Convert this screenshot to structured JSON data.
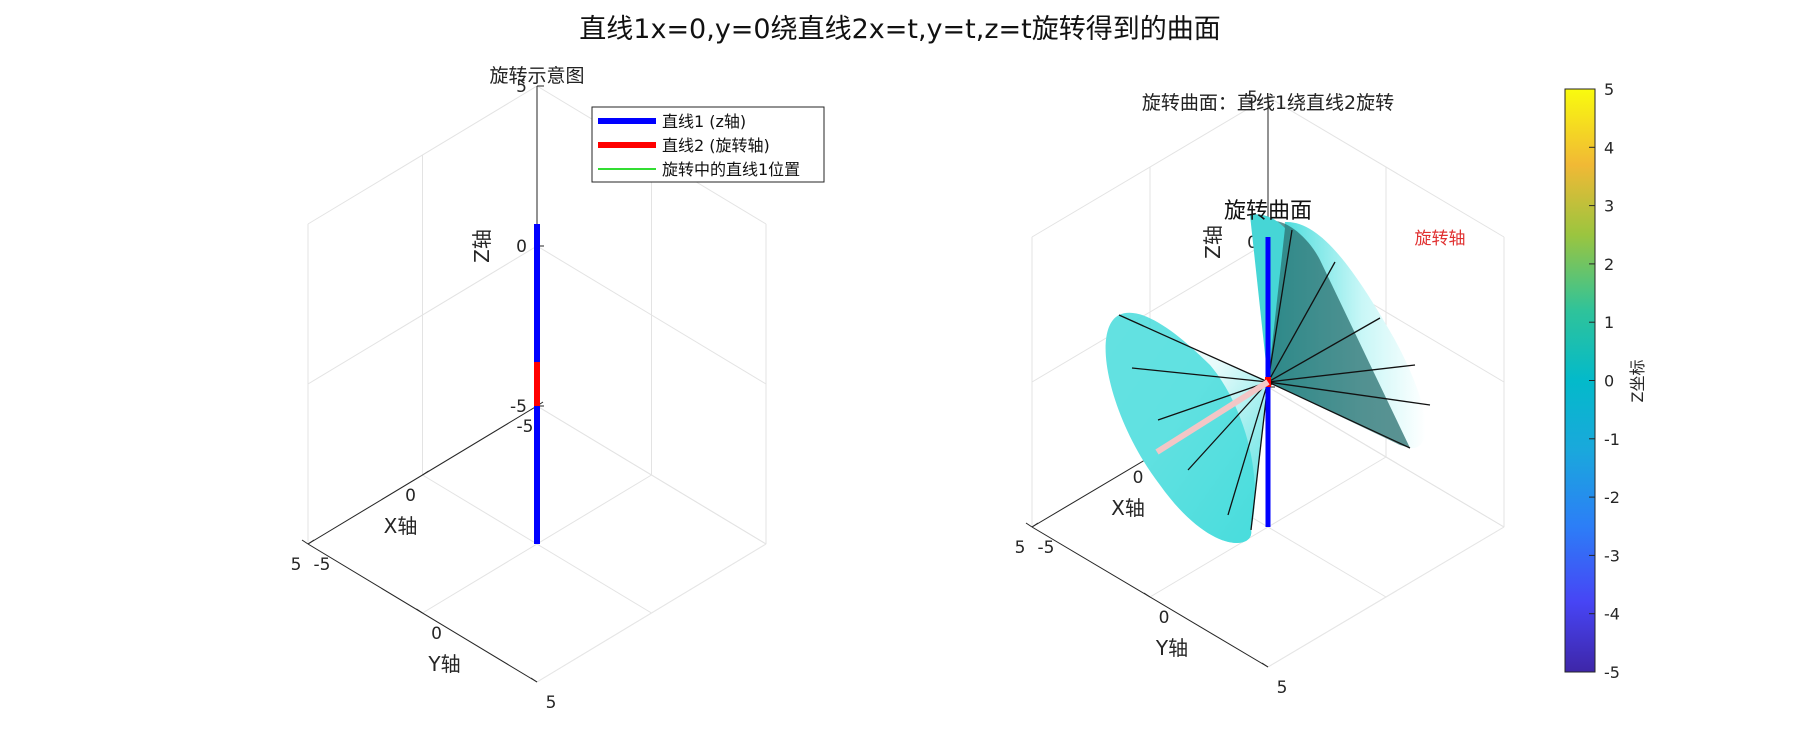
{
  "figure": {
    "title": "直线1x=0,y=0绕直线2x=t,y=t,z=t旋转得到的曲面"
  },
  "colors": {
    "line1": "#0000ff",
    "line2": "#ff0000",
    "rotating_line": "#33dd33",
    "surface": "#40e0e0",
    "axis_label_red": "#e03030"
  },
  "chart_data": [
    {
      "type": "line3d",
      "title": "旋转示意图",
      "xlabel": "X轴",
      "ylabel": "Y轴",
      "zlabel": "Z轴",
      "xlim": [
        -5,
        5
      ],
      "ylim": [
        -5,
        5
      ],
      "zlim": [
        -5,
        5
      ],
      "xticks": [
        "-5",
        "0",
        "5"
      ],
      "yticks": [
        "-5",
        "0",
        "5"
      ],
      "zticks": [
        "-5",
        "0",
        "5"
      ],
      "grid": true,
      "legend_position": "top-right",
      "legend": [
        {
          "label": "直线1 (z轴)"
        },
        {
          "label": "直线2 (旋转轴)"
        },
        {
          "label": "旋转中的直线1位置"
        }
      ],
      "series": [
        {
          "name": "直线1 (z轴)",
          "points": [
            [
              0,
              0,
              -5
            ],
            [
              0,
              0,
              5
            ]
          ]
        },
        {
          "name": "直线2 (旋转轴)",
          "points": [
            [
              -5,
              -5,
              -5
            ],
            [
              5,
              5,
              5
            ]
          ]
        }
      ]
    },
    {
      "type": "surface3d",
      "title": "旋转曲面：直线1绕直线2旋转",
      "xlabel": "X轴",
      "ylabel": "Y轴",
      "zlabel": "Z轴",
      "xlim": [
        -5,
        5
      ],
      "ylim": [
        -5,
        5
      ],
      "zlim": [
        -5,
        5
      ],
      "xticks": [
        "-5",
        "0",
        "5"
      ],
      "yticks": [
        "-5",
        "0",
        "5"
      ],
      "zticks": [
        "-5",
        "0",
        "5"
      ],
      "grid": true,
      "annotations": [
        {
          "text": "旋转曲面",
          "at": [
            0,
            0,
            6
          ]
        },
        {
          "text": "旋转轴",
          "at": [
            5,
            5,
            6
          ]
        }
      ],
      "surface": {
        "description_kind": "double cone",
        "apex": [
          0,
          0,
          0
        ],
        "axis": [
          1,
          1,
          1
        ],
        "t_range": [
          -5,
          5
        ],
        "generator_count": 12
      },
      "series": [
        {
          "name": "直线1 (z轴)",
          "points": [
            [
              0,
              0,
              -5
            ],
            [
              0,
              0,
              5
            ]
          ]
        },
        {
          "name": "直线2 (旋转轴)",
          "points": [
            [
              -5,
              -5,
              -5
            ],
            [
              5,
              5,
              5
            ]
          ]
        }
      ],
      "colorbar": {
        "label": "Z坐标",
        "range": [
          -5,
          5
        ],
        "ticks": [
          "5",
          "4",
          "3",
          "2",
          "1",
          "0",
          "-1",
          "-2",
          "-3",
          "-4",
          "-5"
        ]
      }
    }
  ]
}
